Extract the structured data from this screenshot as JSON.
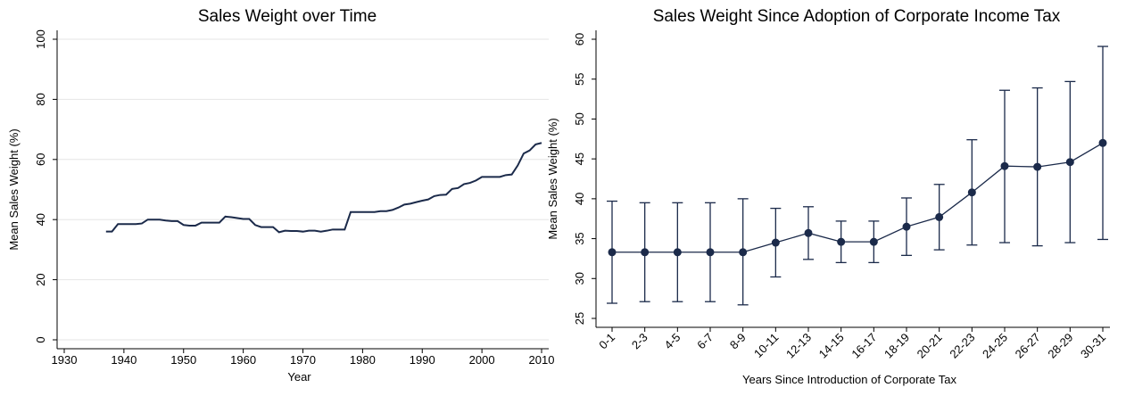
{
  "chart_data": [
    {
      "type": "line",
      "title": "Sales Weight over Time",
      "xlabel": "Year",
      "ylabel": "Mean Sales Weight (%)",
      "x": [
        1937,
        1938,
        1939,
        1940,
        1941,
        1942,
        1943,
        1944,
        1945,
        1946,
        1947,
        1948,
        1949,
        1950,
        1951,
        1952,
        1953,
        1954,
        1955,
        1956,
        1957,
        1958,
        1959,
        1960,
        1961,
        1962,
        1963,
        1964,
        1965,
        1966,
        1967,
        1968,
        1969,
        1970,
        1971,
        1972,
        1973,
        1974,
        1975,
        1976,
        1977,
        1978,
        1979,
        1980,
        1981,
        1982,
        1983,
        1984,
        1985,
        1986,
        1987,
        1988,
        1989,
        1990,
        1991,
        1992,
        1993,
        1994,
        1995,
        1996,
        1997,
        1998,
        1999,
        2000,
        2001,
        2002,
        2003,
        2004,
        2005,
        2006,
        2007,
        2008,
        2009,
        2010
      ],
      "series": [
        {
          "color": "#1b2a4a",
          "values": [
            36,
            36,
            38.5,
            38.5,
            38.5,
            38.5,
            38.7,
            40,
            40,
            40,
            39.7,
            39.5,
            39.5,
            38.2,
            38,
            38,
            39,
            39,
            39,
            39,
            41,
            40.8,
            40.5,
            40.2,
            40.2,
            38.2,
            37.5,
            37.5,
            37.5,
            35.8,
            36.3,
            36.2,
            36.2,
            36,
            36.3,
            36.3,
            36,
            36.3,
            36.7,
            36.7,
            36.7,
            42.5,
            42.5,
            42.5,
            42.5,
            42.5,
            42.8,
            42.8,
            43.2,
            44,
            45,
            45.3,
            45.8,
            46.3,
            46.7,
            47.8,
            48.2,
            48.3,
            50.2,
            50.5,
            51.8,
            52.2,
            53,
            54.2,
            54.2,
            54.2,
            54.2,
            54.8,
            55,
            58,
            62,
            63,
            65,
            65.5
          ]
        }
      ],
      "xlim": [
        1930,
        2010
      ],
      "xticks": [
        1930,
        1940,
        1950,
        1960,
        1970,
        1980,
        1990,
        2000,
        2010
      ],
      "ylim": [
        0,
        100
      ],
      "yticks": [
        0,
        20,
        40,
        60,
        80,
        100
      ],
      "grid": true
    },
    {
      "type": "errorbar",
      "title": "Sales Weight Since Adoption of Corporate Income Tax",
      "xlabel": "Years Since Introduction of Corporate Tax",
      "ylabel": "Mean Sales Weight (%)",
      "categories": [
        "0-1",
        "2-3",
        "4-5",
        "6-7",
        "8-9",
        "10-11",
        "12-13",
        "14-15",
        "16-17",
        "18-19",
        "20-21",
        "22-23",
        "24-25",
        "26-27",
        "28-29",
        "30-31"
      ],
      "series": [
        {
          "color": "#1b2a4a",
          "values": [
            33.3,
            33.3,
            33.3,
            33.3,
            33.3,
            34.5,
            35.7,
            34.6,
            34.6,
            36.5,
            37.7,
            40.8,
            44.1,
            44,
            44.6,
            47
          ],
          "low": [
            26.9,
            27.1,
            27.1,
            27.1,
            26.7,
            30.2,
            32.4,
            32,
            32,
            32.9,
            33.6,
            34.2,
            34.5,
            34.1,
            34.5,
            34.9
          ],
          "high": [
            39.7,
            39.5,
            39.5,
            39.5,
            40,
            38.8,
            39,
            37.2,
            37.2,
            40.1,
            41.8,
            47.4,
            53.6,
            53.9,
            54.7,
            59.1
          ]
        }
      ],
      "ylim": [
        25,
        60
      ],
      "yticks": [
        25,
        30,
        35,
        40,
        45,
        50,
        55,
        60
      ],
      "grid": false
    }
  ]
}
